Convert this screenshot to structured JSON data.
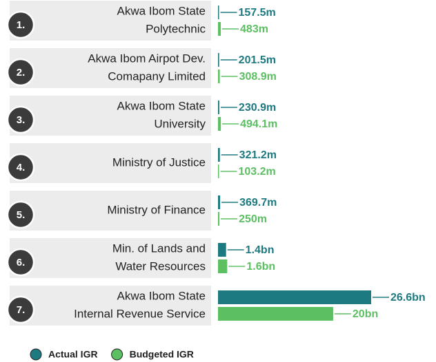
{
  "chart_data": {
    "type": "bar",
    "orientation": "horizontal",
    "ranks": [
      "1.",
      "2.",
      "3.",
      "4.",
      "5.",
      "6.",
      "7."
    ],
    "categories": [
      [
        "Akwa Ibom State",
        "Polytechnic"
      ],
      [
        "Akwa Ibom Airpot Dev.",
        "Comapany Limited"
      ],
      [
        "Akwa Ibom State",
        "University"
      ],
      [
        "Ministry of Justice"
      ],
      [
        "Ministry of Finance"
      ],
      [
        "Min. of Lands and",
        "Water Resources"
      ],
      [
        "Akwa Ibom State",
        "Internal Revenue Service"
      ]
    ],
    "series": [
      {
        "name": "Actual IGR",
        "color": "#1d7a80",
        "values": [
          157.5,
          201.5,
          230.9,
          321.2,
          369.7,
          1400,
          26600
        ],
        "value_labels": [
          "157.5m",
          "201.5m",
          "230.9m",
          "321.2m",
          "369.7m",
          "1.4bn",
          "26.6bn"
        ]
      },
      {
        "name": "Budgeted IGR",
        "color": "#5cbf62",
        "values": [
          483,
          308.9,
          494.1,
          103.2,
          250,
          1600,
          20000
        ],
        "value_labels": [
          "483m",
          "308.9m",
          "494.1m",
          "103.2m",
          "250m",
          "1.6bn",
          "20bn"
        ]
      }
    ]
  }
}
